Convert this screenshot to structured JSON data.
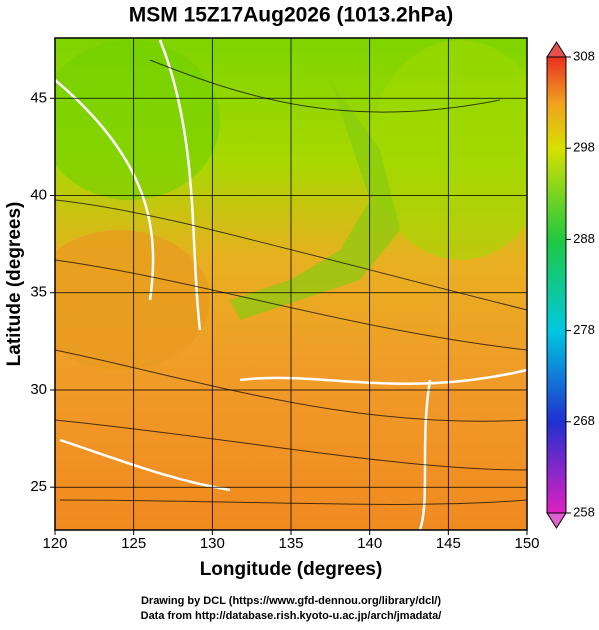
{
  "title": "MSM 15Z17Aug2026 (1013.2hPa)",
  "x_axis": {
    "label": "Longitude (degrees)",
    "lim": [
      120,
      150
    ],
    "ticks": [
      120,
      125,
      130,
      135,
      140,
      145,
      150
    ]
  },
  "y_axis": {
    "label": "Latitude  (degrees)",
    "lim": [
      22.8,
      48.1
    ],
    "ticks": [
      25,
      30,
      35,
      40,
      45
    ]
  },
  "colorbar": {
    "lim": [
      258,
      308
    ],
    "ticks": [
      258,
      268,
      278,
      288,
      298,
      308
    ]
  },
  "credits": [
    "Drawing by DCL (https://www.gfd-dennou.org/library/dcl/)",
    "Data from http://database.rish.kyoto-u.ac.jp/arch/jmadata/"
  ]
}
